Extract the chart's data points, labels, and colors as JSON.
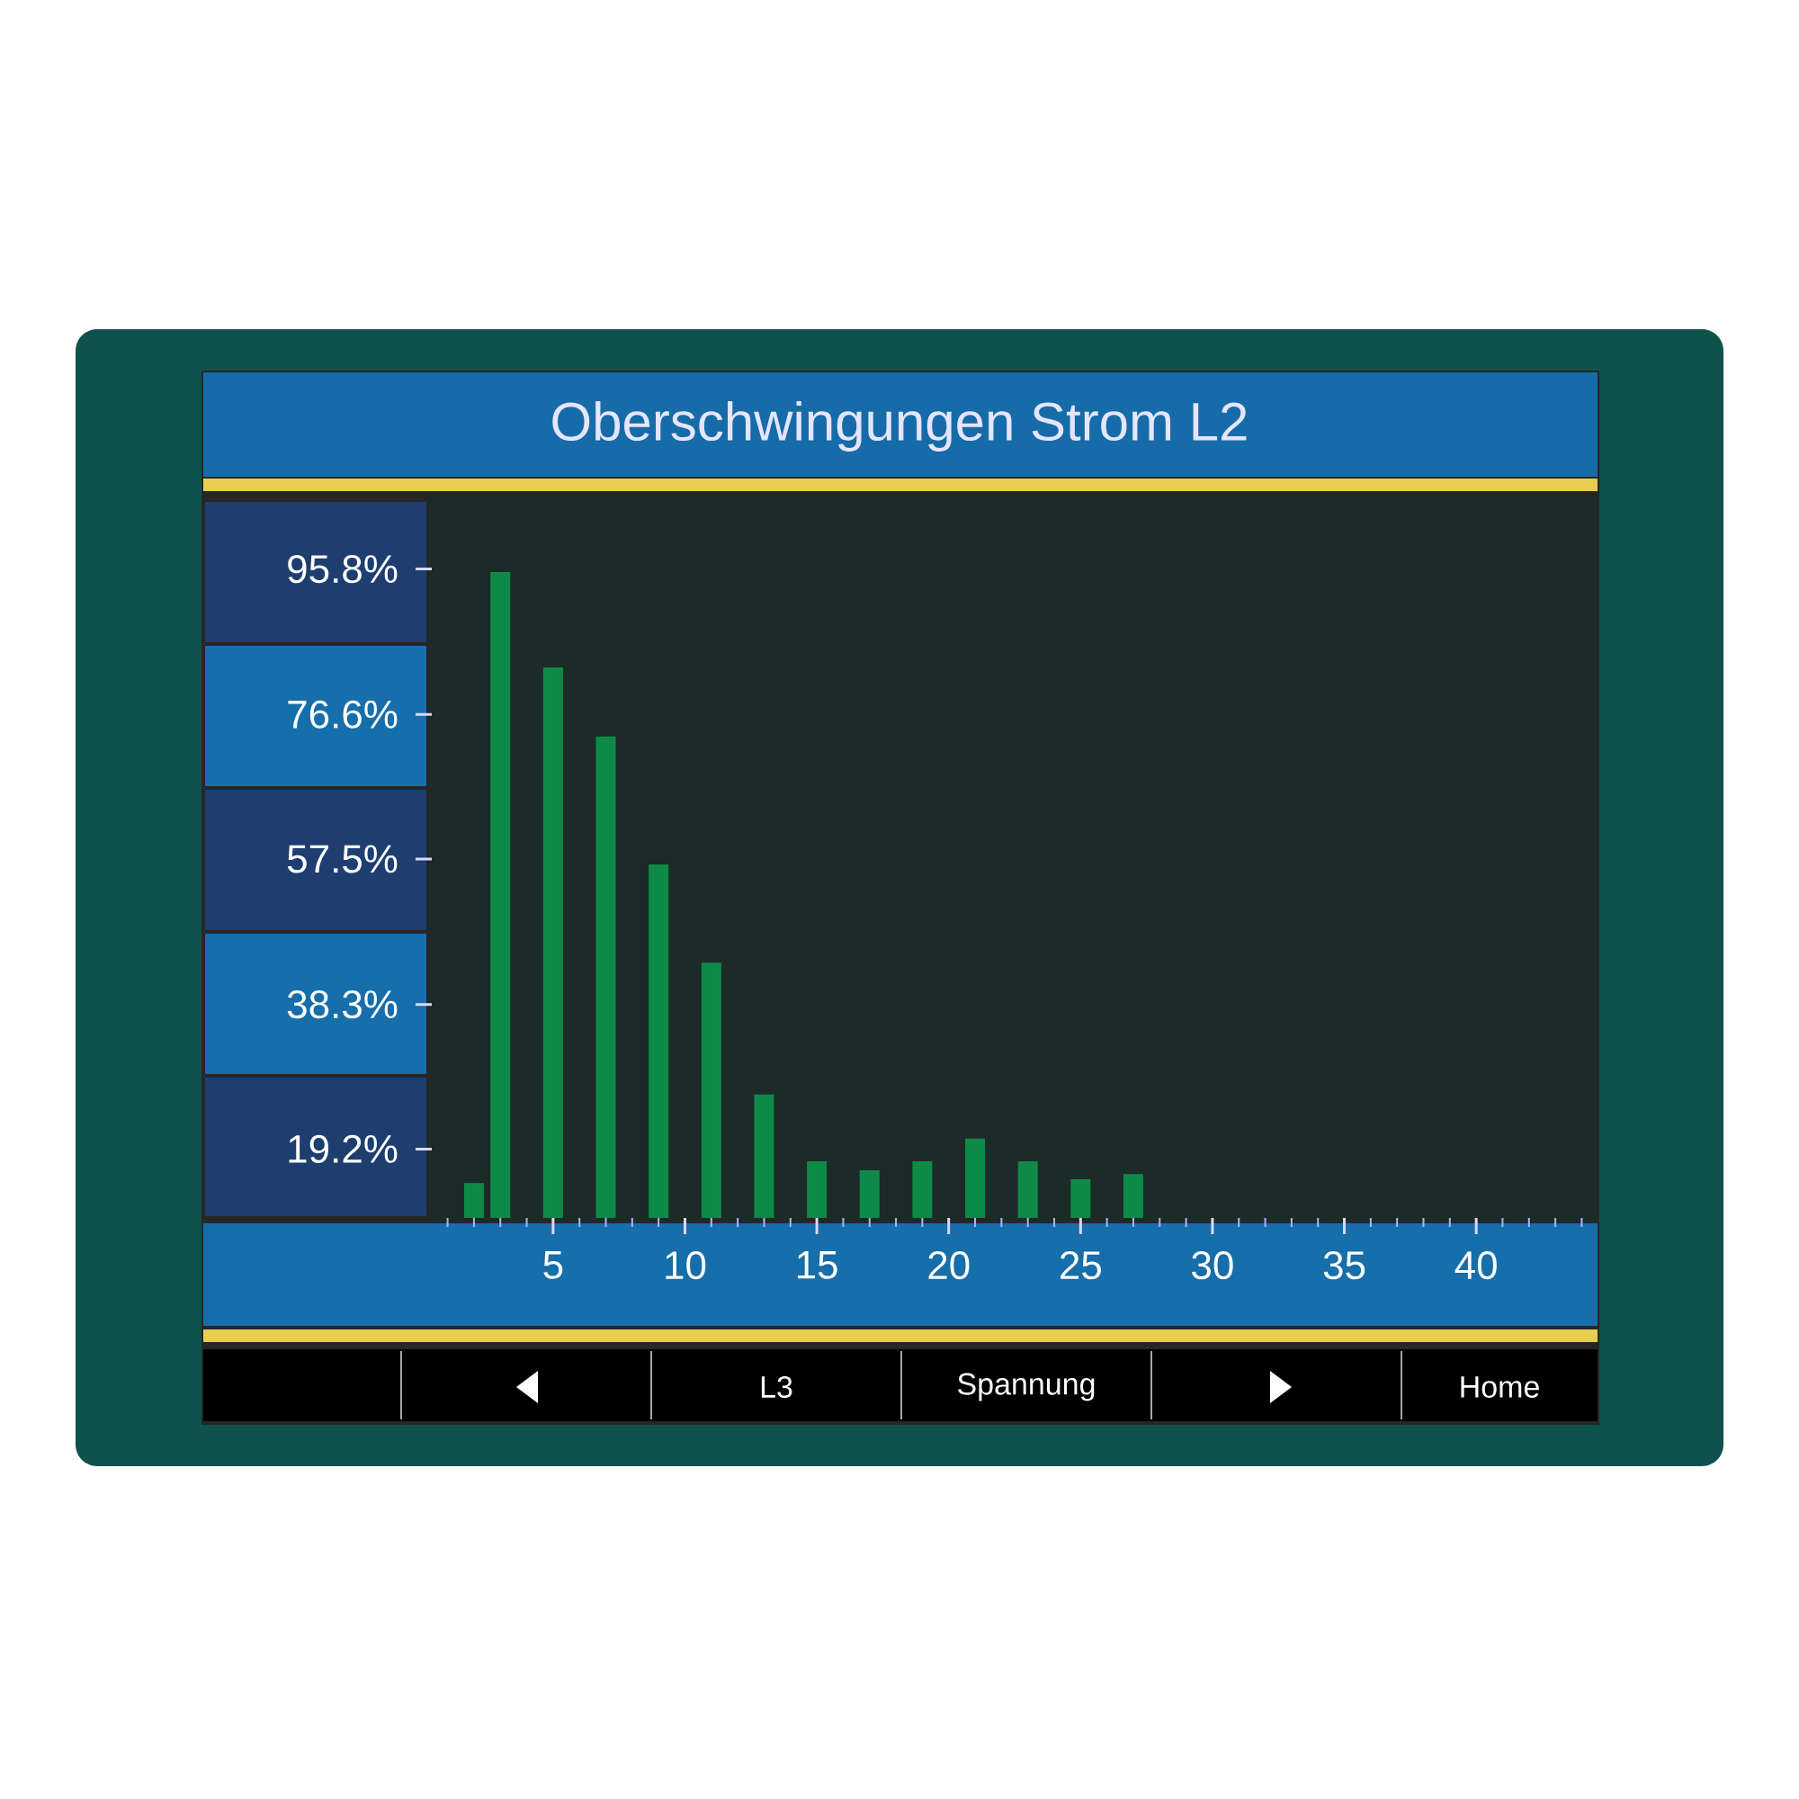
{
  "chart_data": {
    "type": "bar",
    "title": "Oberschwingungen Strom L2",
    "x": [
      2,
      3,
      5,
      7,
      9,
      11,
      13,
      15,
      17,
      19,
      21,
      23,
      25,
      27
    ],
    "values": [
      14.7,
      95.4,
      82.8,
      73.7,
      56.8,
      43.8,
      26.4,
      17.6,
      16.4,
      17.6,
      20.6,
      17.6,
      15.2,
      15.9
    ],
    "color": "#0e8a48",
    "xlim": [
      0.4,
      44.6
    ],
    "xticks": [
      {
        "value": 1,
        "label": null
      },
      {
        "value": 2,
        "label": null
      },
      {
        "value": 3,
        "label": null
      },
      {
        "value": 4,
        "label": null
      },
      5,
      {
        "value": 6,
        "label": null
      },
      {
        "value": 7,
        "label": null
      },
      {
        "value": 8,
        "label": null
      },
      {
        "value": 9,
        "label": null
      },
      10,
      {
        "value": 11,
        "label": null
      },
      {
        "value": 12,
        "label": null
      },
      {
        "value": 13,
        "label": null
      },
      {
        "value": 14,
        "label": null
      },
      15,
      {
        "value": 16,
        "label": null
      },
      {
        "value": 17,
        "label": null
      },
      {
        "value": 18,
        "label": null
      },
      {
        "value": 19,
        "label": null
      },
      20,
      {
        "value": 21,
        "label": null
      },
      {
        "value": 22,
        "label": null
      },
      {
        "value": 23,
        "label": null
      },
      {
        "value": 24,
        "label": null
      },
      25,
      {
        "value": 26,
        "label": null
      },
      {
        "value": 27,
        "label": null
      },
      {
        "value": 28,
        "label": null
      },
      {
        "value": 29,
        "label": null
      },
      30,
      {
        "value": 31,
        "label": null
      },
      {
        "value": 32,
        "label": null
      },
      {
        "value": 33,
        "label": null
      },
      {
        "value": 34,
        "label": null
      },
      35,
      {
        "value": 36,
        "label": null
      },
      {
        "value": 37,
        "label": null
      },
      {
        "value": 38,
        "label": null
      },
      {
        "value": 39,
        "label": null
      },
      40,
      {
        "value": 41,
        "label": null
      },
      {
        "value": 42,
        "label": null
      },
      {
        "value": 43,
        "label": null
      },
      {
        "value": 44,
        "label": null
      }
    ],
    "ylim": [
      10.1,
      104.9
    ],
    "yticks": [
      {
        "value": 19.2,
        "label": "19.2%"
      },
      {
        "value": 38.3,
        "label": "38.3%"
      },
      {
        "value": 57.5,
        "label": "57.5%"
      },
      {
        "value": 76.6,
        "label": "76.6%"
      },
      {
        "value": 95.8,
        "label": "95.8%"
      }
    ],
    "annotations": [
      "L3",
      "Spannung",
      "Home"
    ]
  }
}
